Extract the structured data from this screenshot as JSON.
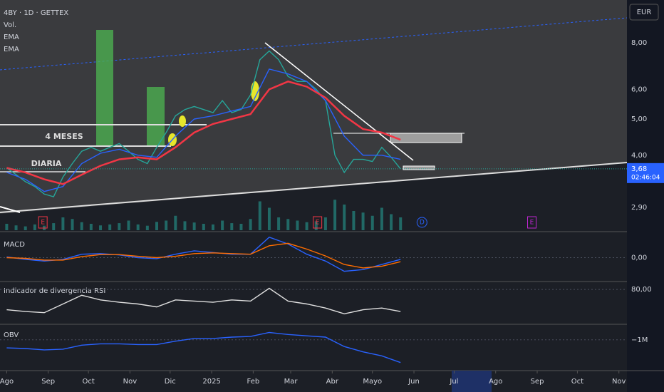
{
  "header": {
    "symbol": "4BY · 1D · GETTEX"
  },
  "currency": "EUR",
  "annotations": [
    "4 MESES",
    "DIARIA"
  ],
  "events": [
    {
      "label": "E",
      "x": 27
    },
    {
      "label": "E",
      "x": 232
    },
    {
      "label": "D",
      "x": 310
    },
    {
      "label": "E",
      "x": 392
    }
  ],
  "countdown": "02:46:04",
  "chart_data": [
    {
      "type": "line",
      "log_scale": true,
      "xlim": [
        -5,
        463
      ],
      "ylim": [
        2.5,
        10.4
      ],
      "last_price": {
        "value": 3.68,
        "label": "3,68"
      },
      "yticks": [
        {
          "value": 8,
          "label": "8,00"
        },
        {
          "value": 6,
          "label": "6,00"
        },
        {
          "value": 5,
          "label": "5,00"
        },
        {
          "value": 4,
          "label": "4,00"
        },
        {
          "value": 2.9,
          "label": "2,90"
        }
      ],
      "xticks": [
        {
          "value": 0,
          "label": "Ago"
        },
        {
          "value": 31,
          "label": "Sep"
        },
        {
          "value": 61,
          "label": "Oct"
        },
        {
          "value": 92,
          "label": "Nov"
        },
        {
          "value": 122,
          "label": "Dic"
        },
        {
          "value": 153,
          "label": "2025"
        },
        {
          "value": 184,
          "label": "Feb"
        },
        {
          "value": 212,
          "label": "Mar"
        },
        {
          "value": 243,
          "label": "Abr"
        },
        {
          "value": 273,
          "label": "Mayo"
        },
        {
          "value": 304,
          "label": "Jun"
        },
        {
          "value": 334,
          "label": "Jul"
        },
        {
          "value": 365,
          "label": "Ago"
        },
        {
          "value": 396,
          "label": "Sep"
        },
        {
          "value": 426,
          "label": "Oct"
        },
        {
          "value": 457,
          "label": "Nov"
        }
      ],
      "x": [
        0,
        7,
        14,
        21,
        28,
        35,
        42,
        49,
        56,
        63,
        70,
        77,
        84,
        91,
        98,
        105,
        112,
        119,
        126,
        133,
        140,
        147,
        154,
        161,
        168,
        175,
        182,
        189,
        196,
        203,
        210,
        217,
        224,
        231,
        238,
        245,
        252,
        259,
        266,
        273,
        280,
        287,
        294
      ],
      "volume": {
        "name": "Vol.",
        "vlim": [
          0,
          100
        ],
        "color": "#26a69a",
        "values": [
          20,
          15,
          12,
          18,
          14,
          22,
          40,
          35,
          25,
          20,
          15,
          18,
          22,
          30,
          18,
          14,
          26,
          30,
          45,
          28,
          24,
          20,
          18,
          30,
          22,
          20,
          35,
          90,
          70,
          40,
          35,
          30,
          25,
          28,
          40,
          95,
          80,
          60,
          55,
          45,
          70,
          50,
          40
        ]
      },
      "series": [
        {
          "color": "#26a69a",
          "values": [
            3.7,
            3.55,
            3.4,
            3.3,
            3.15,
            3.1,
            3.5,
            3.8,
            4.1,
            4.2,
            4.1,
            4.2,
            4.3,
            4.1,
            3.9,
            3.8,
            4.2,
            4.6,
            5.1,
            5.3,
            5.4,
            5.3,
            5.2,
            5.6,
            5.2,
            5.3,
            5.8,
            7.2,
            7.6,
            7.2,
            6.5,
            6.3,
            6.3,
            6.0,
            5.6,
            4.0,
            3.6,
            3.9,
            3.9,
            3.85,
            4.2,
            3.95,
            3.68
          ]
        },
        {
          "name": "EMA",
          "color": "#2962ff",
          "x": [
            0,
            14,
            28,
            42,
            56,
            70,
            84,
            98,
            112,
            126,
            140,
            154,
            168,
            182,
            196,
            210,
            224,
            238,
            252,
            266,
            280,
            294
          ],
          "values": [
            3.6,
            3.45,
            3.2,
            3.3,
            3.8,
            4.05,
            4.15,
            4.0,
            3.95,
            4.5,
            5.0,
            5.1,
            5.25,
            5.4,
            6.8,
            6.6,
            6.3,
            5.6,
            4.5,
            4.0,
            4.0,
            3.9
          ]
        },
        {
          "name": "EMA",
          "color": "#f23645",
          "x": [
            0,
            14,
            28,
            42,
            56,
            70,
            84,
            98,
            112,
            126,
            140,
            154,
            168,
            182,
            196,
            210,
            224,
            238,
            252,
            266,
            280,
            294
          ],
          "values": [
            3.7,
            3.6,
            3.45,
            3.35,
            3.55,
            3.75,
            3.9,
            3.95,
            3.9,
            4.2,
            4.6,
            4.85,
            5.0,
            5.15,
            6.0,
            6.3,
            6.1,
            5.7,
            5.1,
            4.7,
            4.6,
            4.4
          ]
        }
      ]
    },
    {
      "type": "line",
      "title": "MACD",
      "ylim": [
        -0.7,
        0.7
      ],
      "yticks": [
        {
          "value": 0,
          "label": "0,00"
        }
      ],
      "x": [
        0,
        14,
        28,
        42,
        56,
        70,
        84,
        98,
        112,
        126,
        140,
        154,
        168,
        182,
        196,
        210,
        224,
        238,
        252,
        266,
        280,
        294
      ],
      "series": [
        {
          "color": "#2962ff",
          "values": [
            0.02,
            -0.05,
            -0.1,
            -0.05,
            0.1,
            0.12,
            0.08,
            0.0,
            -0.03,
            0.1,
            0.2,
            0.15,
            0.1,
            0.1,
            0.6,
            0.4,
            0.1,
            -0.1,
            -0.4,
            -0.35,
            -0.2,
            -0.05
          ]
        },
        {
          "color": "#ff6d00",
          "values": [
            0.0,
            -0.02,
            -0.07,
            -0.07,
            0.03,
            0.09,
            0.09,
            0.04,
            0.0,
            0.04,
            0.12,
            0.14,
            0.12,
            0.1,
            0.35,
            0.42,
            0.25,
            0.05,
            -0.2,
            -0.3,
            -0.25,
            -0.12
          ]
        }
      ]
    },
    {
      "type": "line",
      "title": "Indicador de divergencia RSI",
      "ylim": [
        20,
        90
      ],
      "yticks": [
        {
          "value": 80,
          "label": "80,00"
        }
      ],
      "x": [
        0,
        14,
        28,
        42,
        56,
        70,
        84,
        98,
        112,
        126,
        140,
        154,
        168,
        182,
        196,
        210,
        224,
        238,
        252,
        266,
        280,
        294
      ],
      "series": [
        {
          "color": "#e0e0e0",
          "values": [
            45,
            42,
            40,
            55,
            70,
            62,
            58,
            55,
            50,
            62,
            60,
            58,
            62,
            60,
            82,
            60,
            55,
            48,
            38,
            45,
            48,
            42
          ]
        }
      ]
    },
    {
      "type": "line",
      "title": "OBV",
      "ylim": [
        -3300000,
        0
      ],
      "yticks": [
        {
          "value": -1000000,
          "label": "−1M"
        }
      ],
      "x": [
        0,
        14,
        28,
        42,
        56,
        70,
        84,
        98,
        112,
        126,
        140,
        154,
        168,
        182,
        196,
        210,
        224,
        238,
        252,
        266,
        280,
        294
      ],
      "series": [
        {
          "color": "#2962ff",
          "values": [
            -1600000,
            -1650000,
            -1750000,
            -1700000,
            -1400000,
            -1300000,
            -1300000,
            -1350000,
            -1350000,
            -1100000,
            -900000,
            -900000,
            -800000,
            -750000,
            -450000,
            -600000,
            -700000,
            -800000,
            -1500000,
            -1900000,
            -2200000,
            -2700000
          ]
        }
      ]
    }
  ]
}
